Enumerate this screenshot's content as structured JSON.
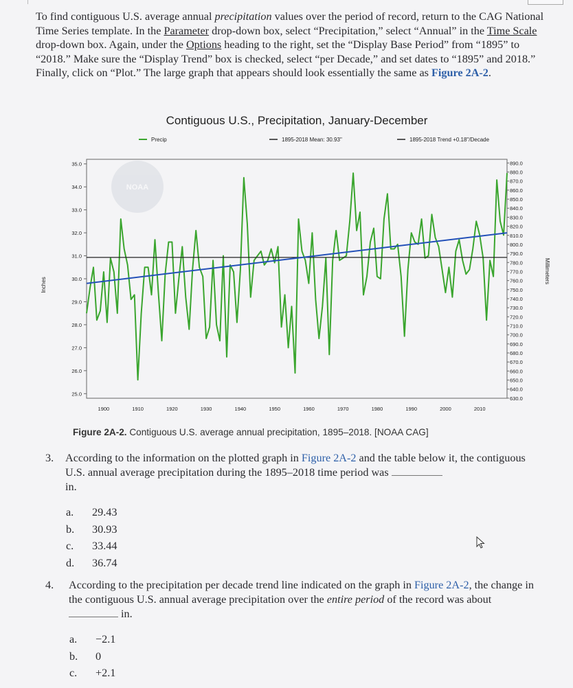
{
  "intro": {
    "t1": "To find contiguous U.S. average annual ",
    "t2": "precipitation",
    "t3": " values over the period of record, return to the CAG National Time Series template. In the ",
    "t4": "Parameter",
    "t5": " drop-down box, select “Precipitation,” select “Annual” in the ",
    "t6": "Time Scale",
    "t7": " drop-down box. Again, under the ",
    "t8": "Options",
    "t9": " heading to the right, set the “Display Base Period” from “1895” to “2018.” Make sure the “Display Trend” box is checked, select “per Decade,” and set dates to “1895” and 2018.” Finally, click on “Plot.” The large graph that appears should look essentially the same as ",
    "t10": "Figure 2A-2",
    "t11": "."
  },
  "chart_data": {
    "type": "line",
    "title": "Contiguous U.S., Precipitation, January-December",
    "legend": [
      "Precip",
      "1895-2018 Mean: 30.93\"",
      "1895-2018 Trend +0.18\"/Decade"
    ],
    "watermark": "NOAA",
    "ylabel_left": "Inches",
    "ylabel_right": "Millimeters",
    "y_ticks_left": [
      "35.0",
      "34.0",
      "33.0",
      "32.0",
      "31.0",
      "30.0",
      "29.0",
      "28.0",
      "27.0",
      "26.0",
      "25.0"
    ],
    "y_ticks_right": [
      "890.0",
      "880.0",
      "870.0",
      "860.0",
      "850.0",
      "840.0",
      "830.0",
      "820.0",
      "810.0",
      "800.0",
      "790.0",
      "780.0",
      "770.0",
      "760.0",
      "750.0",
      "740.0",
      "730.0",
      "720.0",
      "710.0",
      "700.0",
      "690.0",
      "680.0",
      "670.0",
      "660.0",
      "650.0",
      "640.0",
      "630.0"
    ],
    "x_ticks": [
      "1900",
      "1910",
      "1920",
      "1930",
      "1940",
      "1950",
      "1960",
      "1970",
      "1980",
      "1990",
      "2000",
      "2010"
    ],
    "ylim": [
      24.8,
      35.2
    ],
    "xlim": [
      1895,
      2018
    ],
    "mean": 30.93,
    "trend": {
      "start": 29.8,
      "end": 32.0
    },
    "colors": {
      "precip": "#3aa52e",
      "mean": "#222222",
      "trend": "#2350b8"
    },
    "x": [
      1895,
      1896,
      1897,
      1898,
      1899,
      1900,
      1901,
      1902,
      1903,
      1904,
      1905,
      1906,
      1907,
      1908,
      1909,
      1910,
      1911,
      1912,
      1913,
      1914,
      1915,
      1916,
      1917,
      1918,
      1919,
      1920,
      1921,
      1922,
      1923,
      1924,
      1925,
      1926,
      1927,
      1928,
      1929,
      1930,
      1931,
      1932,
      1933,
      1934,
      1935,
      1936,
      1937,
      1938,
      1939,
      1940,
      1941,
      1942,
      1943,
      1944,
      1945,
      1946,
      1947,
      1948,
      1949,
      1950,
      1951,
      1952,
      1953,
      1954,
      1955,
      1956,
      1957,
      1958,
      1959,
      1960,
      1961,
      1962,
      1963,
      1964,
      1965,
      1966,
      1967,
      1968,
      1969,
      1970,
      1971,
      1972,
      1973,
      1974,
      1975,
      1976,
      1977,
      1978,
      1979,
      1980,
      1981,
      1982,
      1983,
      1984,
      1985,
      1986,
      1987,
      1988,
      1989,
      1990,
      1991,
      1992,
      1993,
      1994,
      1995,
      1996,
      1997,
      1998,
      1999,
      2000,
      2001,
      2002,
      2003,
      2004,
      2005,
      2006,
      2007,
      2008,
      2009,
      2010,
      2011,
      2012,
      2013,
      2014,
      2015,
      2016,
      2017,
      2018
    ],
    "values": [
      28.5,
      29.6,
      30.5,
      28.2,
      28.6,
      30.3,
      28.1,
      30.9,
      30.3,
      28.5,
      32.6,
      31.3,
      30.6,
      29.1,
      29.3,
      25.6,
      28.5,
      30.5,
      30.5,
      29.3,
      31.7,
      29.4,
      27.3,
      30.2,
      31.6,
      31.6,
      28.5,
      30.0,
      31.4,
      29.2,
      27.8,
      30.4,
      32.1,
      30.5,
      30.1,
      27.4,
      27.9,
      30.8,
      28.0,
      27.3,
      31.0,
      26.6,
      30.6,
      30.3,
      28.1,
      30.4,
      34.4,
      32.4,
      29.2,
      30.8,
      31.0,
      31.2,
      30.6,
      30.8,
      31.3,
      30.7,
      31.4,
      27.9,
      29.3,
      27.0,
      28.8,
      25.9,
      32.6,
      31.2,
      30.8,
      29.8,
      32.0,
      29.1,
      27.4,
      28.8,
      30.9,
      26.7,
      30.8,
      32.1,
      30.8,
      30.9,
      31.0,
      32.5,
      34.6,
      32.1,
      32.9,
      29.3,
      30.1,
      31.6,
      32.2,
      30.1,
      30.0,
      32.6,
      33.7,
      31.3,
      31.3,
      31.5,
      30.1,
      27.5,
      30.4,
      32.0,
      31.6,
      31.5,
      32.6,
      30.9,
      31.0,
      32.8,
      31.8,
      31.4,
      30.4,
      29.4,
      30.5,
      29.2,
      31.2,
      31.7,
      30.8,
      30.2,
      30.4,
      31.3,
      32.5,
      31.9,
      30.9,
      28.2,
      30.8,
      30.1,
      34.3,
      32.5,
      31.9,
      34.6
    ]
  },
  "caption": {
    "label": "Figure 2A-2.",
    "text": " Contiguous U.S. average annual precipitation, 1895–2018. [NOAA CAG]"
  },
  "q3": {
    "num": "3.",
    "t1": "According to the information on the plotted graph in ",
    "t2": "Figure 2A-2",
    "t3": " and the table below it, the contiguous U.S. annual average precipitation during the 1895–2018 time period was",
    "t4": "in.",
    "options": [
      {
        "label": "a.",
        "value": "29.43"
      },
      {
        "label": "b.",
        "value": "30.93"
      },
      {
        "label": "c.",
        "value": "33.44"
      },
      {
        "label": "d.",
        "value": "36.74"
      }
    ]
  },
  "q4": {
    "num": "4.",
    "t1": "According to the precipitation per decade trend line indicated on the graph in ",
    "t2": "Figure 2A-2",
    "t3": ", the change in the contiguous U.S. annual average precipitation over the ",
    "t4": "entire period",
    "t5": " of the record was about",
    "t6": "in.",
    "options": [
      {
        "label": "a.",
        "value": "−2.1"
      },
      {
        "label": "b.",
        "value": "0"
      },
      {
        "label": "c.",
        "value": "+2.1"
      }
    ]
  }
}
